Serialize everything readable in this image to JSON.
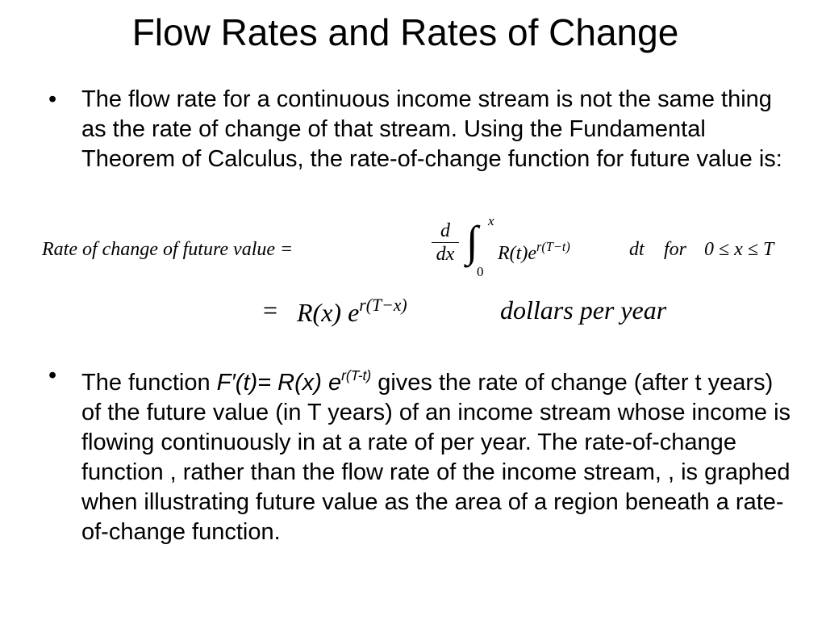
{
  "slide": {
    "title": "Flow Rates and Rates of Change",
    "bullet_1": "The flow rate for a continuous income stream is not the same thing as the rate of change of that stream. Using the Fundamental Theorem of Calculus, the rate-of-change function for future value is:",
    "equation": {
      "lhs": "Rate of change of future value =",
      "frac_num": "d",
      "frac_den": "dx",
      "integral_sign": "∫",
      "upper_limit": "x",
      "lower_limit": "0",
      "integrand": "R(t)e",
      "integrand_exp": "r(T−t)",
      "differential": "dt",
      "domain_word": "for",
      "domain": "0 ≤ x ≤ T",
      "line2_eq": "=",
      "line2_func": "R(x) e",
      "line2_exp": "r(T−x)",
      "line2_units": "dollars per year"
    },
    "bullet_2": {
      "prefix": "The function ",
      "formula": "F′(t)= R(x) e",
      "formula_exp": "r(T-t)",
      "rest": " gives the rate of change (after t years) of the future value (in T years) of an income stream whose income is flowing continuously in at a rate of per year. The rate-of-change function , rather than the flow rate of the income stream, , is graphed when illustrating future value as the area of a region beneath a rate-of-change function."
    },
    "bullet_symbol": "•"
  }
}
